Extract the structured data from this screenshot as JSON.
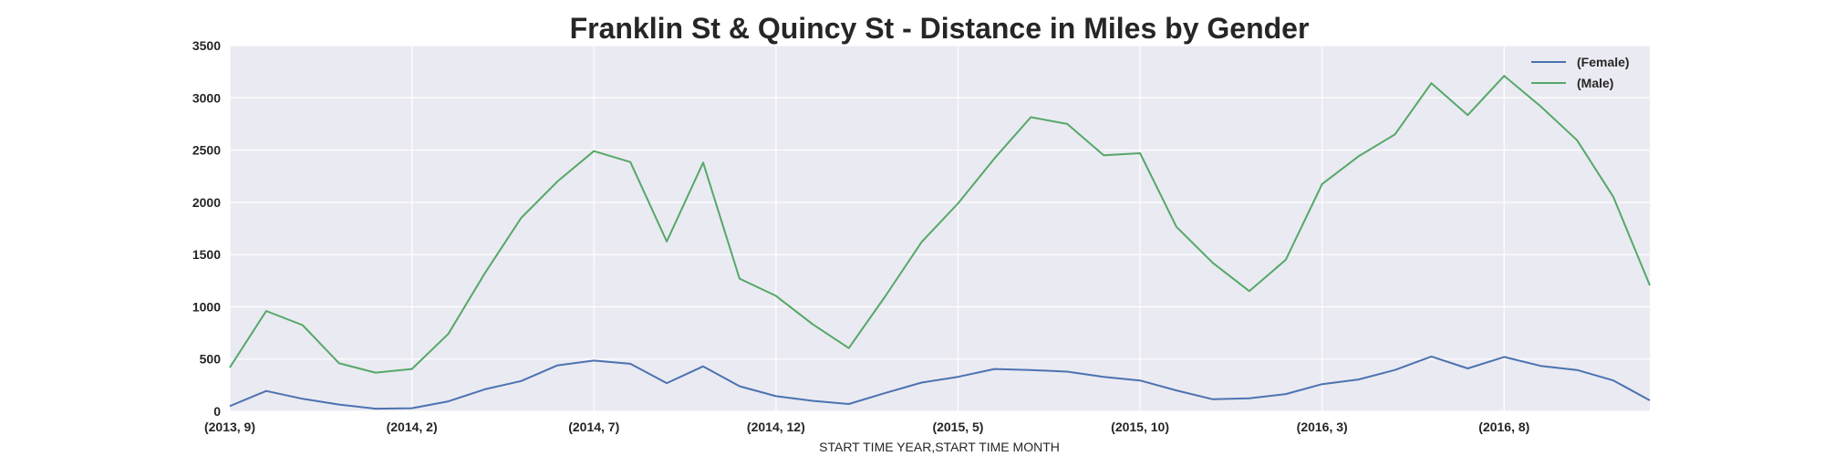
{
  "chart_data": {
    "type": "line",
    "title": "Franklin St & Quincy St - Distance in Miles by Gender",
    "xlabel": "START TIME YEAR,START TIME MONTH",
    "ylabel": "",
    "ylim": [
      0,
      3500
    ],
    "yticks": [
      0,
      500,
      1000,
      1500,
      2000,
      2500,
      3000,
      3500
    ],
    "x": [
      "(2013, 9)",
      "(2013, 10)",
      "(2013, 11)",
      "(2013, 12)",
      "(2014, 1)",
      "(2014, 2)",
      "(2014, 3)",
      "(2014, 4)",
      "(2014, 5)",
      "(2014, 6)",
      "(2014, 7)",
      "(2014, 8)",
      "(2014, 9)",
      "(2014, 10)",
      "(2014, 11)",
      "(2014, 12)",
      "(2015, 1)",
      "(2015, 2)",
      "(2015, 3)",
      "(2015, 4)",
      "(2015, 5)",
      "(2015, 6)",
      "(2015, 7)",
      "(2015, 8)",
      "(2015, 9)",
      "(2015, 10)",
      "(2015, 11)",
      "(2015, 12)",
      "(2016, 1)",
      "(2016, 2)",
      "(2016, 3)",
      "(2016, 4)",
      "(2016, 5)",
      "(2016, 6)",
      "(2016, 7)",
      "(2016, 8)",
      "(2016, 9)",
      "(2016, 10)",
      "(2016, 11)",
      "(2016, 12)"
    ],
    "xtick_labels": [
      "(2013, 9)",
      "(2014, 2)",
      "(2014, 7)",
      "(2014, 12)",
      "(2015, 5)",
      "(2015, 10)",
      "(2016, 3)",
      "(2016, 8)"
    ],
    "grid": true,
    "legend_position": "top-right",
    "series": [
      {
        "name": "(Female)",
        "color": "#4c72b0",
        "values": [
          50,
          195,
          120,
          65,
          25,
          30,
          95,
          210,
          290,
          440,
          485,
          455,
          270,
          430,
          240,
          145,
          100,
          70,
          175,
          275,
          330,
          405,
          395,
          380,
          330,
          295,
          200,
          115,
          125,
          165,
          260,
          305,
          395,
          525,
          410,
          520,
          435,
          395,
          295,
          105
        ]
      },
      {
        "name": "(Male)",
        "color": "#55a868",
        "values": [
          420,
          960,
          825,
          460,
          370,
          405,
          740,
          1320,
          1850,
          2200,
          2490,
          2385,
          1625,
          2380,
          1270,
          1105,
          835,
          605,
          1100,
          1620,
          1990,
          2420,
          2815,
          2750,
          2450,
          2470,
          1765,
          1420,
          1150,
          1450,
          2175,
          2440,
          2650,
          3140,
          2835,
          3210,
          2920,
          2595,
          2050,
          1205
        ]
      }
    ]
  }
}
